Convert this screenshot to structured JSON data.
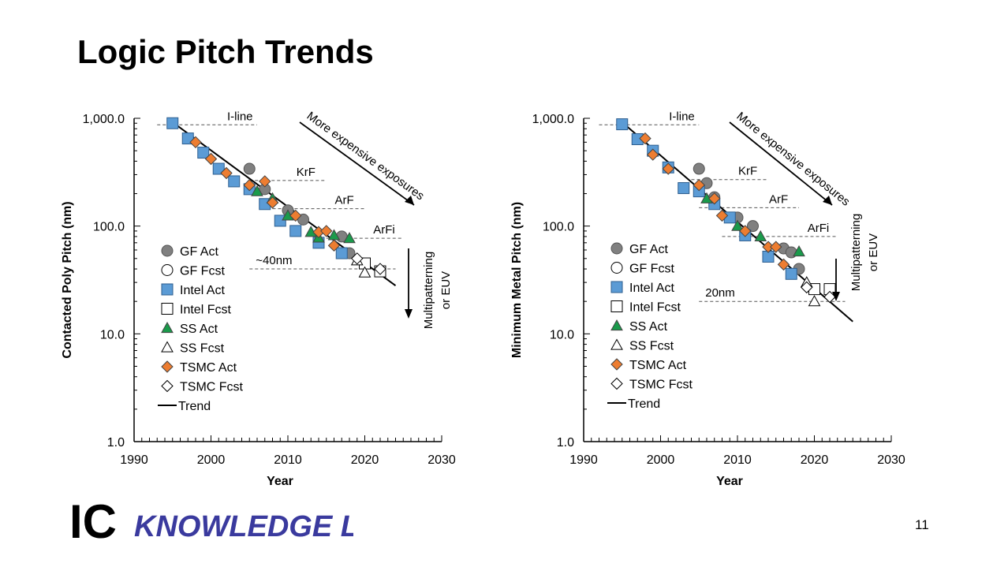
{
  "slide": {
    "title": "Logic Pitch Trends",
    "page_number": "11",
    "logo": {
      "part1": "IC",
      "part2": "Knowledge LLC",
      "color1": "#000000",
      "color2": "#3a3a9e"
    }
  },
  "styles": {
    "gf": "#808080",
    "intel": "#5b9bd5",
    "ss": "#1a9a4b",
    "tsmc": "#ed7d31",
    "line": "#000000"
  },
  "chart_data": [
    {
      "type": "scatter",
      "ylabel": "Contacted Poly Pitch (nm)",
      "xlabel": "Year",
      "log_y": true,
      "xlim": [
        1990,
        2030
      ],
      "ylim": [
        1,
        1000
      ],
      "x_ticks": [
        "1990",
        "2000",
        "2010",
        "2020",
        "2030"
      ],
      "y_ticks": [
        "1.0",
        "10.0",
        "100.0",
        "1,000.0"
      ],
      "legend_position": "left",
      "annotation_arrow": "More expensive exposures",
      "annotation_down": [
        "Multipatterning",
        "or EUV"
      ],
      "exposure_lines": [
        {
          "label": "I-line",
          "y": 870,
          "x0": 1993,
          "x1": 2006
        },
        {
          "label": "KrF",
          "y": 265,
          "x0": 2005,
          "x1": 2015
        },
        {
          "label": "ArF",
          "y": 145,
          "x0": 2008,
          "x1": 2020
        },
        {
          "label": "ArFi",
          "y": 77,
          "x0": 2015,
          "x1": 2025
        },
        {
          "label": "~40nm",
          "y": 40,
          "x0": 2005,
          "x1": 2024
        }
      ],
      "trend": {
        "x": [
          1995,
          2024
        ],
        "y": [
          920,
          28
        ]
      },
      "series": [
        {
          "name": "GF Act",
          "marker": "circle",
          "color": "#808080",
          "filled": true,
          "x": [
            2005,
            2007,
            2010,
            2012,
            2017,
            2018
          ],
          "y": [
            340,
            220,
            140,
            115,
            80,
            56
          ]
        },
        {
          "name": "GF Fcst",
          "marker": "circle",
          "color": "#808080",
          "filled": false,
          "x": [],
          "y": []
        },
        {
          "name": "Intel Act",
          "marker": "square",
          "color": "#5b9bd5",
          "filled": true,
          "x": [
            1995,
            1997,
            1999,
            2001,
            2003,
            2005,
            2007,
            2009,
            2011,
            2014,
            2017
          ],
          "y": [
            900,
            650,
            480,
            340,
            260,
            220,
            160,
            112,
            90,
            70,
            56
          ]
        },
        {
          "name": "Intel Fcst",
          "marker": "square",
          "color": "#000000",
          "filled": false,
          "x": [
            2020,
            2022
          ],
          "y": [
            45,
            38
          ]
        },
        {
          "name": "SS Act",
          "marker": "triangle",
          "color": "#1a9a4b",
          "filled": true,
          "x": [
            2006,
            2008,
            2010,
            2013,
            2014,
            2016,
            2018
          ],
          "y": [
            210,
            180,
            125,
            88,
            78,
            82,
            77
          ]
        },
        {
          "name": "SS Fcst",
          "marker": "triangle",
          "color": "#000000",
          "filled": false,
          "x": [
            2019,
            2020
          ],
          "y": [
            48,
            37
          ]
        },
        {
          "name": "TSMC Act",
          "marker": "diamond",
          "color": "#ed7d31",
          "filled": true,
          "x": [
            1998,
            2000,
            2002,
            2005,
            2007,
            2008,
            2011,
            2014,
            2015,
            2016
          ],
          "y": [
            600,
            420,
            310,
            240,
            260,
            165,
            125,
            88,
            90,
            66
          ]
        },
        {
          "name": "TSMC Fcst",
          "marker": "diamond",
          "color": "#000000",
          "filled": false,
          "x": [
            2019,
            2022
          ],
          "y": [
            50,
            40
          ]
        },
        {
          "name": "Trend",
          "marker": "line",
          "color": "#000000",
          "filled": true,
          "x": [],
          "y": []
        }
      ]
    },
    {
      "type": "scatter",
      "ylabel": "Minimum Metal Pitch (nm)",
      "xlabel": "Year",
      "log_y": true,
      "xlim": [
        1990,
        2030
      ],
      "ylim": [
        1,
        1000
      ],
      "x_ticks": [
        "1990",
        "2000",
        "2010",
        "2020",
        "2030"
      ],
      "y_ticks": [
        "1.0",
        "10.0",
        "100.0",
        "1,000.0"
      ],
      "legend_position": "left",
      "annotation_arrow": "More expensive exposures",
      "annotation_down": [
        "Multipatterning",
        "or EUV"
      ],
      "exposure_lines": [
        {
          "label": "I-line",
          "y": 870,
          "x0": 1992,
          "x1": 2005
        },
        {
          "label": "KrF",
          "y": 270,
          "x0": 2004,
          "x1": 2014
        },
        {
          "label": "ArF",
          "y": 148,
          "x0": 2005,
          "x1": 2018
        },
        {
          "label": "ArFi",
          "y": 80,
          "x0": 2008,
          "x1": 2023
        },
        {
          "label": "20nm",
          "y": 20,
          "x0": 2005,
          "x1": 2024
        }
      ],
      "trend": {
        "x": [
          1995,
          2025
        ],
        "y": [
          920,
          13
        ]
      },
      "series": [
        {
          "name": "GF Act",
          "marker": "circle",
          "color": "#808080",
          "filled": true,
          "x": [
            2005,
            2006,
            2007,
            2010,
            2012,
            2016,
            2017,
            2018
          ],
          "y": [
            340,
            250,
            185,
            120,
            100,
            62,
            57,
            40
          ]
        },
        {
          "name": "GF Fcst",
          "marker": "circle",
          "color": "#808080",
          "filled": false,
          "x": [],
          "y": []
        },
        {
          "name": "Intel Act",
          "marker": "square",
          "color": "#5b9bd5",
          "filled": true,
          "x": [
            1995,
            1997,
            1999,
            2001,
            2003,
            2005,
            2007,
            2009,
            2011,
            2014,
            2017
          ],
          "y": [
            880,
            640,
            500,
            350,
            225,
            210,
            160,
            120,
            82,
            52,
            36
          ]
        },
        {
          "name": "Intel Fcst",
          "marker": "square",
          "color": "#000000",
          "filled": false,
          "x": [
            2020,
            2022
          ],
          "y": [
            26,
            26
          ]
        },
        {
          "name": "SS Act",
          "marker": "triangle",
          "color": "#1a9a4b",
          "filled": true,
          "x": [
            2006,
            2010,
            2013,
            2018
          ],
          "y": [
            180,
            100,
            80,
            58
          ]
        },
        {
          "name": "SS Fcst",
          "marker": "triangle",
          "color": "#000000",
          "filled": false,
          "x": [
            2019,
            2020
          ],
          "y": [
            30,
            20
          ]
        },
        {
          "name": "TSMC Act",
          "marker": "diamond",
          "color": "#ed7d31",
          "filled": true,
          "x": [
            1998,
            1999,
            2001,
            2005,
            2007,
            2008,
            2011,
            2014,
            2015,
            2016
          ],
          "y": [
            650,
            460,
            340,
            240,
            180,
            125,
            90,
            64,
            64,
            44
          ]
        },
        {
          "name": "TSMC Fcst",
          "marker": "diamond",
          "color": "#000000",
          "filled": false,
          "x": [
            2019,
            2022
          ],
          "y": [
            27,
            22
          ]
        },
        {
          "name": "Trend",
          "marker": "line",
          "color": "#000000",
          "filled": true,
          "x": [],
          "y": []
        }
      ]
    }
  ]
}
